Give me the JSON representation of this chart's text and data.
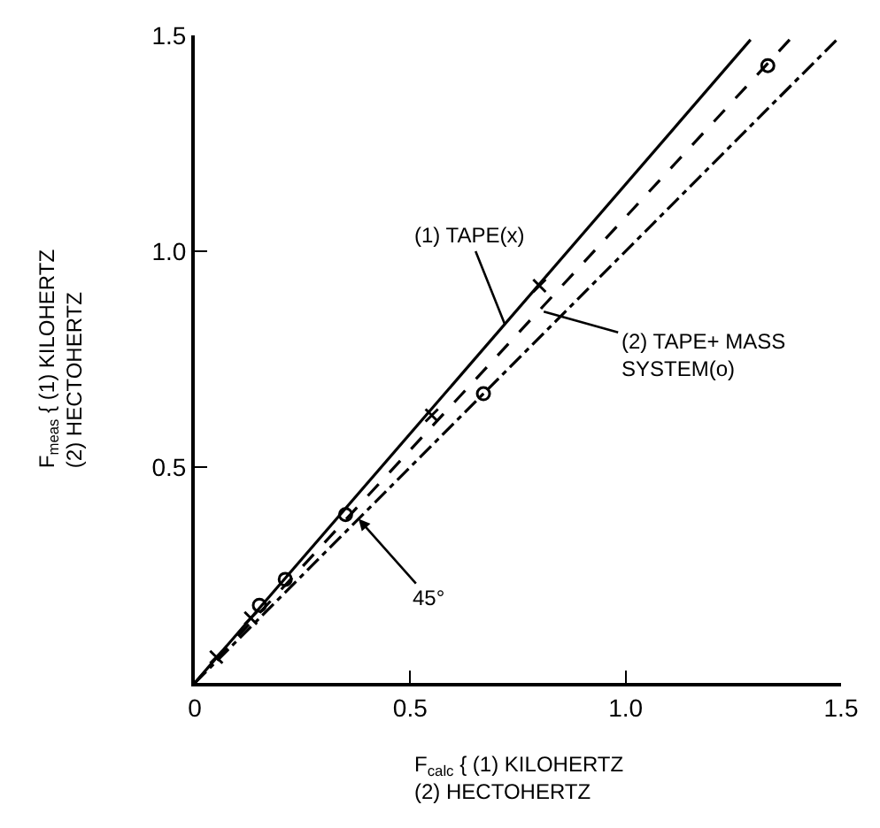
{
  "chart_data": {
    "type": "line",
    "xlabel": "F$_{calc}$ { (1) KILOHERTZ\n(2) HECTOHERTZ",
    "ylabel": "F$_{meas}$ { (1) KILOHERTZ\n(2) HECTOHERTZ",
    "xlim": [
      0,
      1.5
    ],
    "ylim": [
      0,
      1.5
    ],
    "xticks": [
      {
        "value": 0,
        "label": "0"
      },
      0.5,
      {
        "value": 1,
        "label": "1.0"
      },
      1.5
    ],
    "yticks": [
      {
        "value": 0,
        "label": null
      },
      0.5,
      {
        "value": 1,
        "label": "1.0"
      },
      1.5
    ],
    "grid": false,
    "series": [
      {
        "color": "#000000",
        "line_style": "solid",
        "marker": "none",
        "x": [
          0,
          1.29
        ],
        "values": [
          0,
          1.49
        ]
      },
      {
        "color": "#000000",
        "line_style": "dashed",
        "marker": "none",
        "x": [
          0,
          1.39
        ],
        "values": [
          0,
          1.5
        ]
      },
      {
        "color": "#000000",
        "line_style": "dashdot",
        "marker": "none",
        "x": [
          0,
          1.49
        ],
        "values": [
          0,
          1.49
        ]
      },
      {
        "type": "scatter",
        "color": "#000000",
        "marker": "cross",
        "x": [
          0.05,
          0.13,
          0.55,
          0.8
        ],
        "values": [
          0.06,
          0.15,
          0.62,
          0.92
        ]
      },
      {
        "type": "scatter",
        "color": "#000000",
        "marker": "circle",
        "x": [
          0.15,
          0.21,
          0.35,
          0.67,
          1.33
        ],
        "values": [
          0.18,
          0.24,
          0.39,
          0.67,
          1.43
        ]
      }
    ],
    "annotations": [
      {
        "text": "(1) TAPE(x)",
        "x": 0.72,
        "y": 0.83
      },
      {
        "text": "(2) TAPE+ MASS\nSYSTEM(o)",
        "x": 0.81,
        "y": 0.86
      },
      {
        "text": "45°",
        "x": 0.38,
        "y": 0.38
      }
    ]
  }
}
